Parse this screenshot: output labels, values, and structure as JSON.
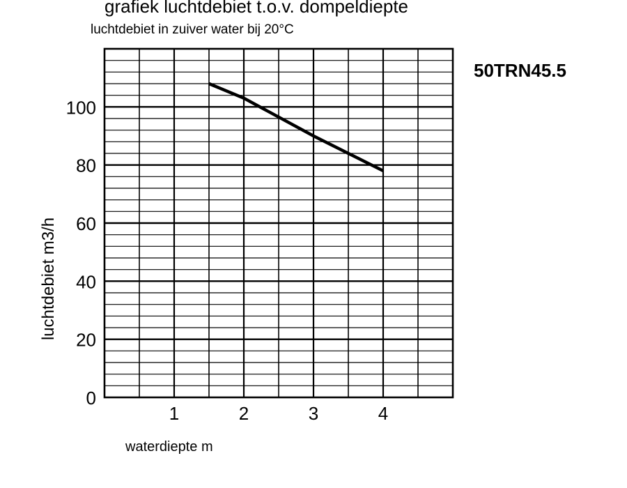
{
  "chart_data": {
    "type": "line",
    "title": "grafiek luchtdebiet t.o.v. dompeldiepte",
    "subtitle": "luchtdebiet in zuiver water bij 20°C",
    "model": "50TRN45.5",
    "xlabel": "waterdiepte m",
    "ylabel": "luchtdebiet m3/h",
    "xlim": [
      0,
      5
    ],
    "ylim": [
      0,
      120
    ],
    "x_ticks": [
      1,
      2,
      3,
      4
    ],
    "y_ticks": [
      0,
      20,
      40,
      60,
      80,
      100
    ],
    "x_tick_labels": [
      "1",
      "2",
      "3",
      "4"
    ],
    "y_tick_labels": [
      "0",
      "20",
      "40",
      "60",
      "80",
      "100"
    ],
    "grid": true,
    "x_grid_step": 0.5,
    "y_grid_step": 4,
    "series": [
      {
        "x": [
          1.5,
          2,
          3,
          4
        ],
        "y": [
          108,
          103,
          90,
          78
        ]
      }
    ],
    "colors": {
      "line": "#000000",
      "grid": "#000000"
    }
  }
}
